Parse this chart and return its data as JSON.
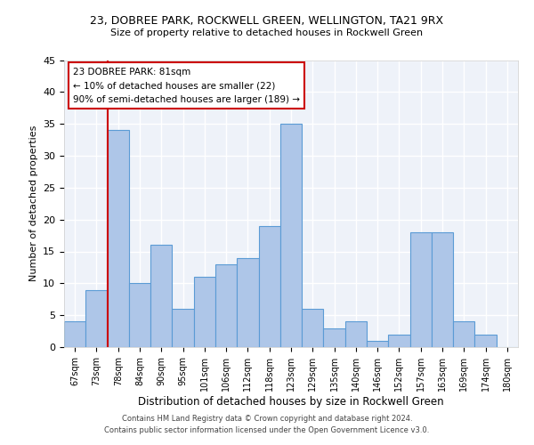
{
  "title": "23, DOBREE PARK, ROCKWELL GREEN, WELLINGTON, TA21 9RX",
  "subtitle": "Size of property relative to detached houses in Rockwell Green",
  "xlabel": "Distribution of detached houses by size in Rockwell Green",
  "ylabel": "Number of detached properties",
  "categories": [
    "67sqm",
    "73sqm",
    "78sqm",
    "84sqm",
    "90sqm",
    "95sqm",
    "101sqm",
    "106sqm",
    "112sqm",
    "118sqm",
    "123sqm",
    "129sqm",
    "135sqm",
    "140sqm",
    "146sqm",
    "152sqm",
    "157sqm",
    "163sqm",
    "169sqm",
    "174sqm",
    "180sqm"
  ],
  "values": [
    4,
    9,
    34,
    10,
    16,
    6,
    11,
    13,
    14,
    19,
    35,
    6,
    3,
    4,
    1,
    2,
    18,
    18,
    4,
    2,
    0
  ],
  "bar_color": "#aec6e8",
  "bar_edge_color": "#5b9bd5",
  "vline_color": "#cc0000",
  "annotation_title": "23 DOBREE PARK: 81sqm",
  "annotation_line1": "← 10% of detached houses are smaller (22)",
  "annotation_line2": "90% of semi-detached houses are larger (189) →",
  "annotation_box_color": "#ffffff",
  "annotation_box_edge": "#cc0000",
  "ylim": [
    0,
    45
  ],
  "yticks": [
    0,
    5,
    10,
    15,
    20,
    25,
    30,
    35,
    40,
    45
  ],
  "background_color": "#eef2f9",
  "grid_color": "#ffffff",
  "fig_facecolor": "#ffffff",
  "footer_line1": "Contains HM Land Registry data © Crown copyright and database right 2024.",
  "footer_line2": "Contains public sector information licensed under the Open Government Licence v3.0."
}
